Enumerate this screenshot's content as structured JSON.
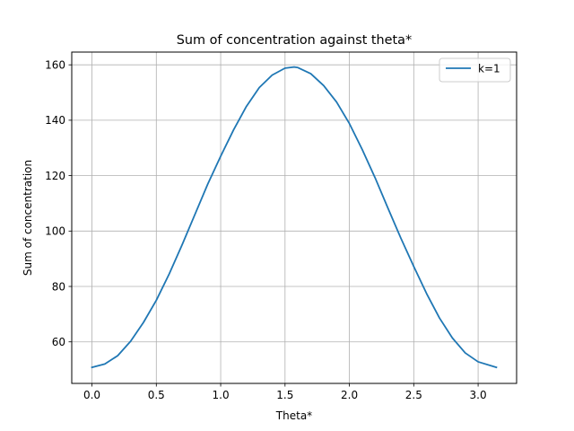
{
  "chart_data": {
    "type": "line",
    "title": "Sum of concentration against theta*",
    "xlabel": "Theta*",
    "ylabel": "Sum of concentration",
    "xlim": [
      -0.157,
      3.299
    ],
    "ylim": [
      45.0,
      164.6
    ],
    "xticks": [
      0.0,
      0.5,
      1.0,
      1.5,
      2.0,
      2.5,
      3.0
    ],
    "xtick_labels": [
      "0.0",
      "0.5",
      "1.0",
      "1.5",
      "2.0",
      "2.5",
      "3.0"
    ],
    "yticks": [
      60,
      80,
      100,
      120,
      140,
      160
    ],
    "ytick_labels": [
      "60",
      "80",
      "100",
      "120",
      "140",
      "160"
    ],
    "grid": true,
    "legend_position": "upper right",
    "series": [
      {
        "name": "k=1",
        "color": "#1f77b4",
        "x": [
          0.0,
          0.1,
          0.2,
          0.3,
          0.4,
          0.5,
          0.6,
          0.7,
          0.8,
          0.9,
          1.0,
          1.1,
          1.2,
          1.3,
          1.4,
          1.5,
          1.5708,
          1.6,
          1.7,
          1.8,
          1.9,
          2.0,
          2.1,
          2.2,
          2.3,
          2.4,
          2.5,
          2.6,
          2.7,
          2.8,
          2.9,
          3.0,
          3.1416
        ],
        "y": [
          50.8,
          52.0,
          55.0,
          60.2,
          67.0,
          75.0,
          84.5,
          95.0,
          106.0,
          117.0,
          127.0,
          136.5,
          145.0,
          151.8,
          156.3,
          158.8,
          159.2,
          159.0,
          156.8,
          152.5,
          146.6,
          138.8,
          129.4,
          119.2,
          108.2,
          97.4,
          87.2,
          77.4,
          68.6,
          61.4,
          56.0,
          52.8,
          50.8
        ]
      }
    ]
  }
}
